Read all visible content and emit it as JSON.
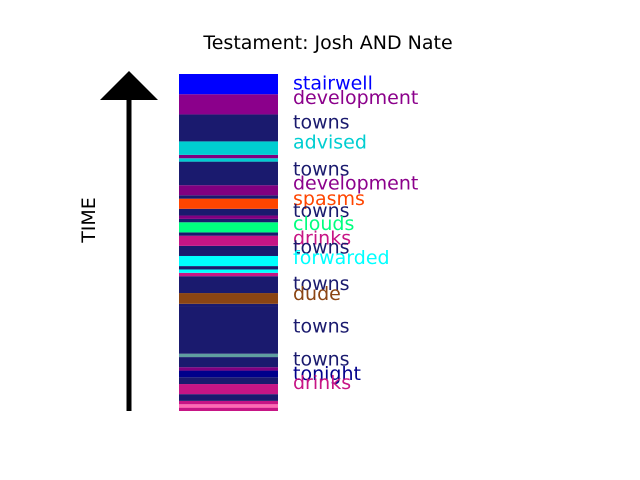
{
  "chart_data": {
    "type": "timeline-strip",
    "title": "Testament: Josh AND Nate",
    "ylabel": "TIME",
    "ylim": [
      0,
      100
    ],
    "segments": [
      {
        "start": 0,
        "end": 1,
        "color": "#c71585"
      },
      {
        "start": 1,
        "end": 2,
        "color": "#ff69b4"
      },
      {
        "start": 2,
        "end": 3,
        "color": "#c71585"
      },
      {
        "start": 3,
        "end": 5,
        "color": "#1a1a6e"
      },
      {
        "start": 5,
        "end": 8,
        "color": "#c71585"
      },
      {
        "start": 8,
        "end": 10,
        "color": "#1a1a6e"
      },
      {
        "start": 10,
        "end": 12,
        "color": "#00008b"
      },
      {
        "start": 12,
        "end": 13,
        "color": "#800080"
      },
      {
        "start": 13,
        "end": 16,
        "color": "#1a1a6e"
      },
      {
        "start": 16,
        "end": 17,
        "color": "#5f9ea0"
      },
      {
        "start": 17,
        "end": 31,
        "color": "#1a1a6e"
      },
      {
        "start": 31,
        "end": 31.8,
        "color": "#1a1a6e"
      },
      {
        "start": 31.8,
        "end": 35,
        "color": "#8b4513"
      },
      {
        "start": 35,
        "end": 40,
        "color": "#1a1a6e"
      },
      {
        "start": 40,
        "end": 41,
        "color": "#c71585"
      },
      {
        "start": 41,
        "end": 42,
        "color": "#00ffff"
      },
      {
        "start": 42,
        "end": 43,
        "color": "#1a1a6e"
      },
      {
        "start": 43,
        "end": 46,
        "color": "#00ffff"
      },
      {
        "start": 46,
        "end": 49,
        "color": "#1a1a6e"
      },
      {
        "start": 49,
        "end": 52,
        "color": "#c71585"
      },
      {
        "start": 52,
        "end": 53,
        "color": "#1a1a6e"
      },
      {
        "start": 53,
        "end": 56,
        "color": "#00ff7f"
      },
      {
        "start": 56,
        "end": 57,
        "color": "#1a1a6e"
      },
      {
        "start": 57,
        "end": 58,
        "color": "#800080"
      },
      {
        "start": 58,
        "end": 60,
        "color": "#1a1a6e"
      },
      {
        "start": 60,
        "end": 63,
        "color": "#ff4500"
      },
      {
        "start": 63,
        "end": 64,
        "color": "#1a1a6e"
      },
      {
        "start": 64,
        "end": 67,
        "color": "#800080"
      },
      {
        "start": 67,
        "end": 74,
        "color": "#1a1a6e"
      },
      {
        "start": 74,
        "end": 75,
        "color": "#00ced1"
      },
      {
        "start": 75,
        "end": 76,
        "color": "#800080"
      },
      {
        "start": 76,
        "end": 80,
        "color": "#00ced1"
      },
      {
        "start": 80,
        "end": 88,
        "color": "#1a1a6e"
      },
      {
        "start": 88,
        "end": 94,
        "color": "#8b008b"
      },
      {
        "start": 94,
        "end": 100,
        "color": "#0000ff"
      }
    ],
    "labels": [
      {
        "text": "stairwell",
        "pos": 97.0,
        "color": "#0000ff"
      },
      {
        "text": "development",
        "pos": 92.8,
        "color": "#8b008b"
      },
      {
        "text": "towns",
        "pos": 85.5,
        "color": "#1a1a6e"
      },
      {
        "text": "advised",
        "pos": 79.5,
        "color": "#00ced1"
      },
      {
        "text": "towns",
        "pos": 71.5,
        "color": "#1a1a6e"
      },
      {
        "text": "development",
        "pos": 67.3,
        "color": "#8b008b"
      },
      {
        "text": "spasms",
        "pos": 62.8,
        "color": "#ff4500"
      },
      {
        "text": "towns",
        "pos": 59.2,
        "color": "#1a1a6e"
      },
      {
        "text": "clouds",
        "pos": 55.3,
        "color": "#00ff7f"
      },
      {
        "text": "drinks",
        "pos": 51.0,
        "color": "#c71585"
      },
      {
        "text": "towns",
        "pos": 48.4,
        "color": "#1a1a6e"
      },
      {
        "text": "forwarded",
        "pos": 45.2,
        "color": "#00ffff"
      },
      {
        "text": "towns",
        "pos": 37.5,
        "color": "#1a1a6e"
      },
      {
        "text": "dude",
        "pos": 34.5,
        "color": "#8b4513"
      },
      {
        "text": "towns",
        "pos": 25.0,
        "color": "#1a1a6e"
      },
      {
        "text": "towns",
        "pos": 15.2,
        "color": "#1a1a6e"
      },
      {
        "text": "tonight",
        "pos": 10.9,
        "color": "#00008b"
      },
      {
        "text": "drinks",
        "pos": 8.1,
        "color": "#c71585"
      }
    ]
  }
}
